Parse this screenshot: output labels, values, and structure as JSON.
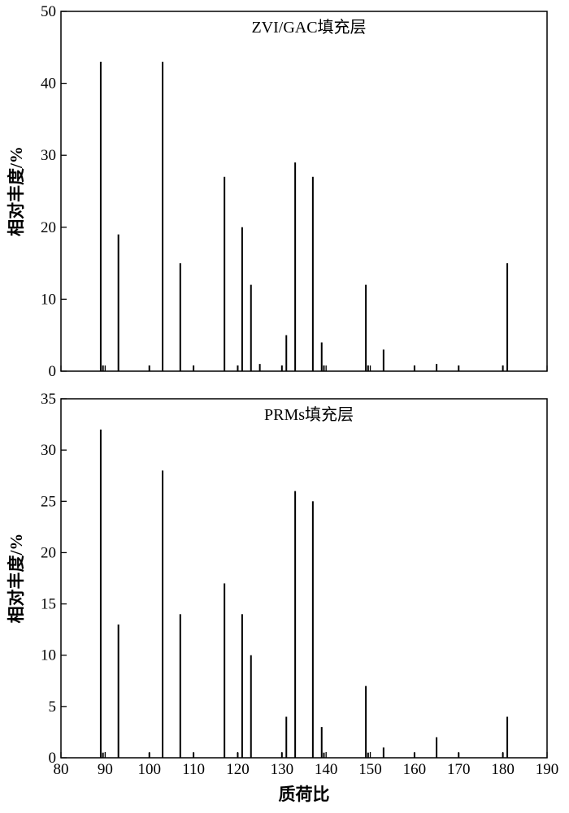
{
  "chart_data": [
    {
      "type": "bar",
      "title": "ZVI/GAC填充层",
      "xlabel": "",
      "ylabel": "相对丰度/%",
      "xlim": [
        80,
        190
      ],
      "ylim": [
        0,
        50
      ],
      "x_ticks": [
        80,
        90,
        100,
        110,
        120,
        130,
        140,
        150,
        160,
        170,
        180,
        190
      ],
      "x_tick_labels_visible": false,
      "y_ticks": [
        0,
        10,
        20,
        30,
        40,
        50
      ],
      "y_tick_labels": [
        "0",
        "10",
        "20",
        "30",
        "40",
        "50"
      ],
      "grid": false,
      "series": [
        {
          "x": [
            89,
            89.5,
            93,
            100,
            103,
            107,
            110,
            117,
            120,
            121,
            123,
            125,
            130,
            131,
            133,
            137,
            139,
            139.5,
            149,
            149.5,
            153,
            160,
            165,
            170,
            180,
            181
          ],
          "y": [
            43,
            0.8,
            19,
            0.8,
            43,
            15,
            0.8,
            27,
            0.8,
            20,
            12,
            1,
            0.8,
            5,
            29,
            27,
            4,
            0.8,
            12,
            0.8,
            3,
            0.8,
            1,
            0.8,
            0.8,
            15
          ]
        }
      ]
    },
    {
      "type": "bar",
      "title": "PRMs填充层",
      "xlabel": "质荷比",
      "ylabel": "相对丰度/%",
      "xlim": [
        80,
        190
      ],
      "ylim": [
        0,
        35
      ],
      "x_ticks": [
        80,
        90,
        100,
        110,
        120,
        130,
        140,
        150,
        160,
        170,
        180,
        190
      ],
      "x_tick_labels": [
        "80",
        "90",
        "100",
        "110",
        "120",
        "130",
        "140",
        "150",
        "160",
        "170",
        "180",
        "190"
      ],
      "y_ticks": [
        0,
        5,
        10,
        15,
        20,
        25,
        30,
        35
      ],
      "y_tick_labels": [
        "0",
        "5",
        "10",
        "15",
        "20",
        "25",
        "30",
        "35"
      ],
      "grid": false,
      "series": [
        {
          "x": [
            89,
            89.5,
            93,
            100,
            103,
            107,
            110,
            117,
            120,
            121,
            123,
            130,
            131,
            133,
            137,
            139,
            139.5,
            149,
            149.5,
            153,
            160,
            165,
            170,
            180,
            181
          ],
          "y": [
            32,
            0.5,
            13,
            0.5,
            28,
            14,
            0.5,
            17,
            0.5,
            14,
            10,
            0.5,
            4,
            26,
            25,
            3,
            0.5,
            7,
            0.5,
            1,
            0.5,
            2,
            0.5,
            0.5,
            4
          ]
        }
      ]
    }
  ]
}
